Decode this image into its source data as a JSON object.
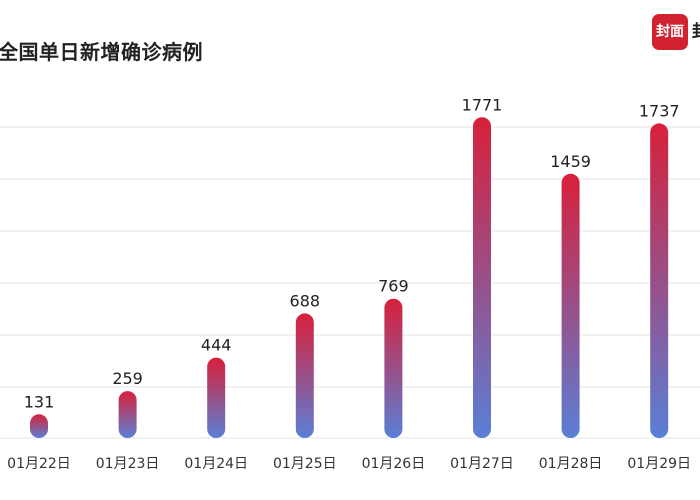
{
  "title": "全国单日新增确诊病例",
  "logo": {
    "text": "封面",
    "ext_text": "封"
  },
  "chart_data": {
    "type": "bar",
    "title": "全国单日新增确诊病例",
    "categories": [
      "01月22日",
      "01月23日",
      "01月24日",
      "01月25日",
      "01月26日",
      "01月27日",
      "01月28日",
      "01月29日"
    ],
    "values": [
      131,
      259,
      444,
      688,
      769,
      1771,
      1459,
      1737
    ],
    "ylim": [
      0,
      1800
    ],
    "grid": true,
    "colors": {
      "top": "#d8203a",
      "bottom": "#5a7fd6",
      "grid": "#e6e6e6",
      "label": "#222222"
    }
  }
}
